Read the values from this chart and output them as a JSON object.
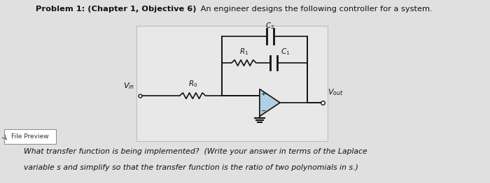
{
  "title_bold": "Problem 1: (Chapter 1, Objective 6)",
  "title_normal": " An engineer designs the following controller for a system.",
  "question_line1": "What transfer function is being implemented?  (Write your answer in terms of the Laplace",
  "question_line2": "variable s and simplify so that the transfer function is the ratio of two polynomials in s.)",
  "file_preview_label": "File Preview",
  "label_C2": "$C_2$",
  "label_C1": "$C_1$",
  "label_R1": "$R_1$",
  "label_R0": "$R_0$",
  "label_Vin": "$V_{in}$",
  "label_Vout": "$V_{out}$",
  "bg_color": "#e0e0e0",
  "op_amp_fill": "#b0cfe0",
  "wire_color": "#111111",
  "text_color": "#111111"
}
